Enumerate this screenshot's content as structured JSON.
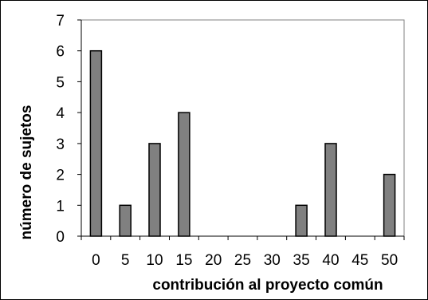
{
  "chart_data": {
    "type": "bar",
    "title": "",
    "xlabel": "contribución al proyecto común",
    "ylabel": "número de sujetos",
    "categories": [
      "0",
      "5",
      "10",
      "15",
      "20",
      "25",
      "30",
      "35",
      "40",
      "45",
      "50"
    ],
    "values": [
      6,
      1,
      3,
      4,
      0,
      0,
      0,
      1,
      3,
      0,
      2
    ],
    "ylim": [
      0,
      7
    ],
    "yticks": [
      0,
      1,
      2,
      3,
      4,
      5,
      6,
      7
    ],
    "grid": false,
    "legend": "none",
    "colors": {
      "bar_fill": "#808080",
      "bar_stroke": "#000000",
      "axis": "#000000",
      "frame": "#808080"
    }
  }
}
